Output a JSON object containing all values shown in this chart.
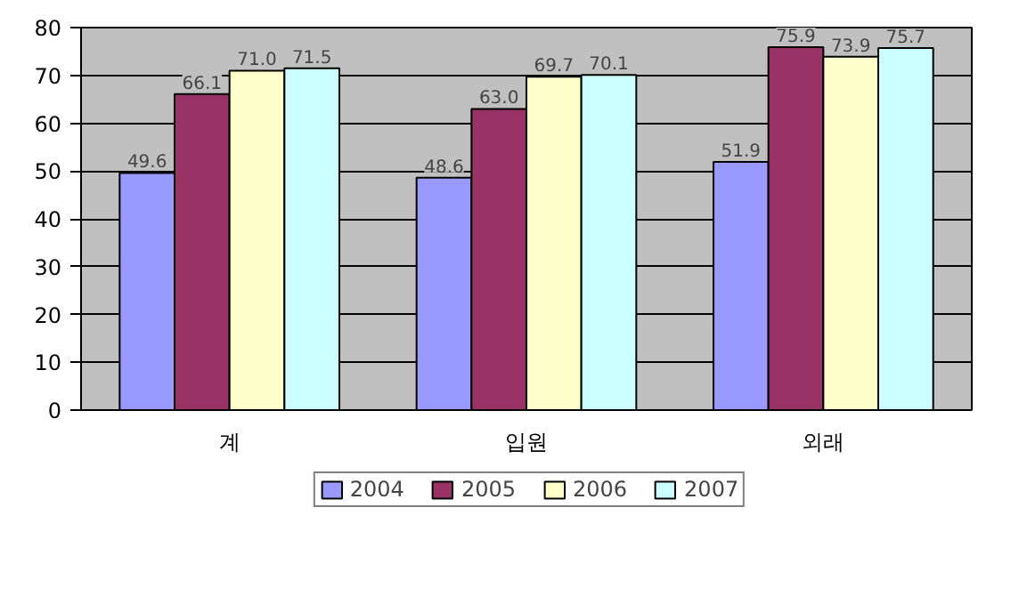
{
  "chart_data": {
    "type": "bar",
    "categories": [
      "계",
      "입원",
      "외래"
    ],
    "series": [
      {
        "name": "2004",
        "color": "#9999ff",
        "values": [
          49.6,
          48.6,
          51.9
        ]
      },
      {
        "name": "2005",
        "color": "#993366",
        "values": [
          66.1,
          63.0,
          75.9
        ]
      },
      {
        "name": "2006",
        "color": "#ffffcc",
        "values": [
          71.0,
          69.7,
          73.9
        ]
      },
      {
        "name": "2007",
        "color": "#ccffff",
        "values": [
          71.5,
          70.1,
          75.7
        ]
      }
    ],
    "value_labels": [
      [
        "49.6",
        "48.6",
        "51.9"
      ],
      [
        "66.1",
        "63.0",
        "75.9"
      ],
      [
        "71.0",
        "69.7",
        "73.9"
      ],
      [
        "71.5",
        "70.1",
        "75.7"
      ]
    ],
    "ylim": [
      0,
      80
    ],
    "yticks": [
      0,
      10,
      20,
      30,
      40,
      50,
      60,
      70,
      80
    ],
    "grid": "y",
    "legend": "bottom"
  }
}
